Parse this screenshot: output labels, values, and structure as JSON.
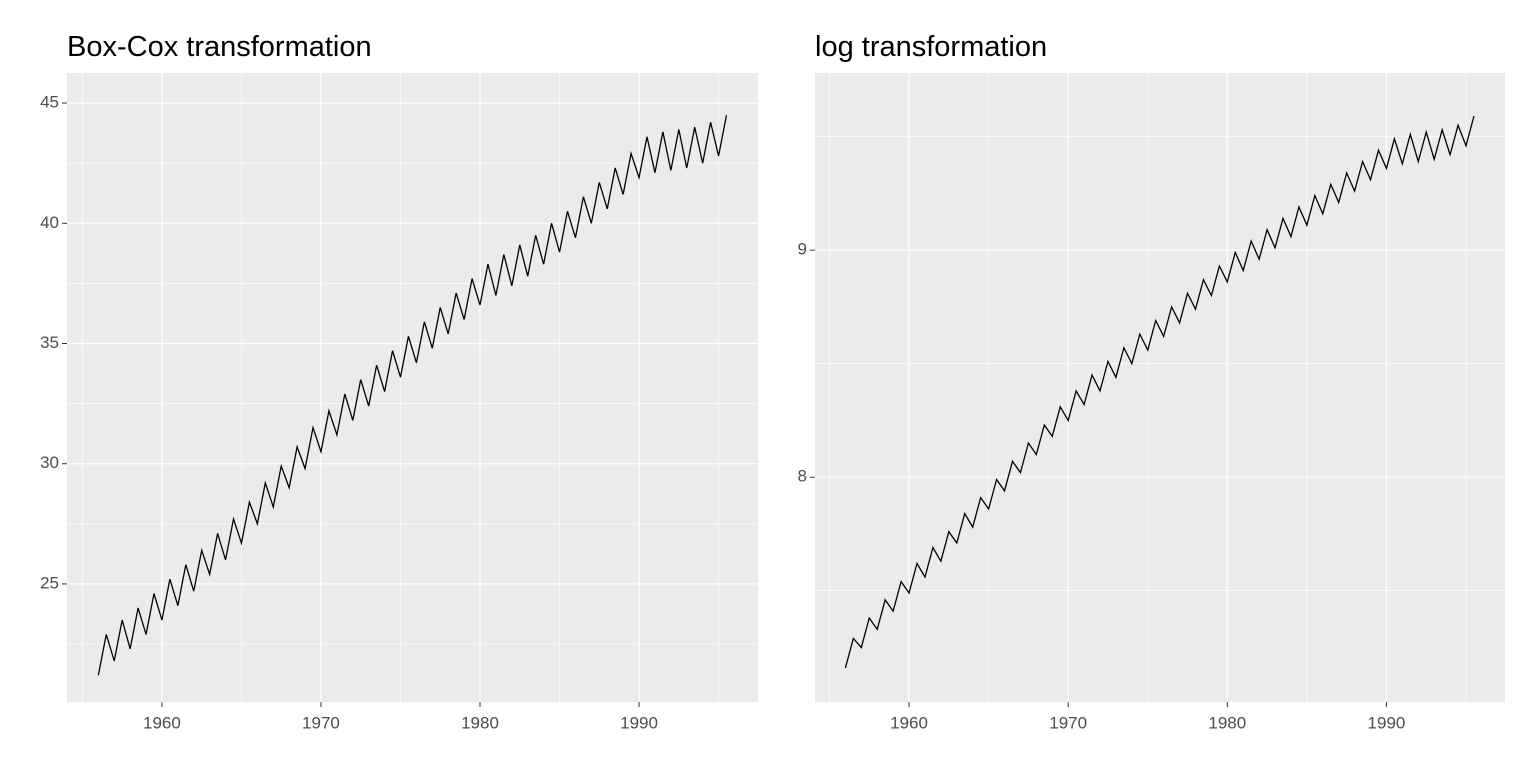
{
  "chart_data": [
    {
      "type": "line",
      "title": "Box-Cox transformation",
      "color": "#000000",
      "grid": true,
      "x": [
        1956.0,
        1956.5,
        1957.0,
        1957.5,
        1958.0,
        1958.5,
        1959.0,
        1959.5,
        1960.0,
        1960.5,
        1961.0,
        1961.5,
        1962.0,
        1962.5,
        1963.0,
        1963.5,
        1964.0,
        1964.5,
        1965.0,
        1965.5,
        1966.0,
        1966.5,
        1967.0,
        1967.5,
        1968.0,
        1968.5,
        1969.0,
        1969.5,
        1970.0,
        1970.5,
        1971.0,
        1971.5,
        1972.0,
        1972.5,
        1973.0,
        1973.5,
        1974.0,
        1974.5,
        1975.0,
        1975.5,
        1976.0,
        1976.5,
        1977.0,
        1977.5,
        1978.0,
        1978.5,
        1979.0,
        1979.5,
        1980.0,
        1980.5,
        1981.0,
        1981.5,
        1982.0,
        1982.5,
        1983.0,
        1983.5,
        1984.0,
        1984.5,
        1985.0,
        1985.5,
        1986.0,
        1986.5,
        1987.0,
        1987.5,
        1988.0,
        1988.5,
        1989.0,
        1989.5,
        1990.0,
        1990.5,
        1991.0,
        1991.5,
        1992.0,
        1992.5,
        1993.0,
        1993.5,
        1994.0,
        1994.5,
        1995.0,
        1995.5
      ],
      "values": [
        21.2,
        22.9,
        21.8,
        23.5,
        22.3,
        24.0,
        22.9,
        24.6,
        23.5,
        25.2,
        24.1,
        25.8,
        24.7,
        26.4,
        25.4,
        27.1,
        26.0,
        27.7,
        26.7,
        28.4,
        27.5,
        29.2,
        28.2,
        29.9,
        29.0,
        30.7,
        29.8,
        31.5,
        30.5,
        32.2,
        31.2,
        32.9,
        31.8,
        33.5,
        32.4,
        34.1,
        33.0,
        34.7,
        33.6,
        35.3,
        34.2,
        35.9,
        34.8,
        36.5,
        35.4,
        37.1,
        36.0,
        37.7,
        36.6,
        38.3,
        37.0,
        38.7,
        37.4,
        39.1,
        37.8,
        39.5,
        38.3,
        40.0,
        38.8,
        40.5,
        39.4,
        41.1,
        40.0,
        41.7,
        40.6,
        42.3,
        41.2,
        42.9,
        41.9,
        43.6,
        42.1,
        43.8,
        42.2,
        43.9,
        42.3,
        44.0,
        42.5,
        44.2,
        42.8,
        44.5
      ],
      "xlim": [
        1954.03,
        1997.48
      ],
      "xticks": [
        1960,
        1970,
        1980,
        1990
      ],
      "ylim": [
        20.09,
        46.25
      ],
      "yticks": [
        25,
        30,
        35,
        40,
        45
      ]
    },
    {
      "type": "line",
      "title": "log transformation",
      "color": "#000000",
      "grid": true,
      "x": [
        1956.0,
        1956.5,
        1957.0,
        1957.5,
        1958.0,
        1958.5,
        1959.0,
        1959.5,
        1960.0,
        1960.5,
        1961.0,
        1961.5,
        1962.0,
        1962.5,
        1963.0,
        1963.5,
        1964.0,
        1964.5,
        1965.0,
        1965.5,
        1966.0,
        1966.5,
        1967.0,
        1967.5,
        1968.0,
        1968.5,
        1969.0,
        1969.5,
        1970.0,
        1970.5,
        1971.0,
        1971.5,
        1972.0,
        1972.5,
        1973.0,
        1973.5,
        1974.0,
        1974.5,
        1975.0,
        1975.5,
        1976.0,
        1976.5,
        1977.0,
        1977.5,
        1978.0,
        1978.5,
        1979.0,
        1979.5,
        1980.0,
        1980.5,
        1981.0,
        1981.5,
        1982.0,
        1982.5,
        1983.0,
        1983.5,
        1984.0,
        1984.5,
        1985.0,
        1985.5,
        1986.0,
        1986.5,
        1987.0,
        1987.5,
        1988.0,
        1988.5,
        1989.0,
        1989.5,
        1990.0,
        1990.5,
        1991.0,
        1991.5,
        1992.0,
        1992.5,
        1993.0,
        1993.5,
        1994.0,
        1994.5,
        1995.0,
        1995.5
      ],
      "values": [
        7.16,
        7.29,
        7.25,
        7.38,
        7.33,
        7.46,
        7.41,
        7.54,
        7.49,
        7.62,
        7.56,
        7.69,
        7.63,
        7.76,
        7.71,
        7.84,
        7.78,
        7.91,
        7.86,
        7.99,
        7.94,
        8.07,
        8.02,
        8.15,
        8.1,
        8.23,
        8.18,
        8.31,
        8.25,
        8.38,
        8.32,
        8.45,
        8.38,
        8.51,
        8.44,
        8.57,
        8.5,
        8.63,
        8.56,
        8.69,
        8.62,
        8.75,
        8.68,
        8.81,
        8.74,
        8.87,
        8.8,
        8.93,
        8.86,
        8.99,
        8.91,
        9.04,
        8.96,
        9.09,
        9.01,
        9.14,
        9.06,
        9.19,
        9.11,
        9.24,
        9.16,
        9.29,
        9.21,
        9.34,
        9.26,
        9.39,
        9.31,
        9.44,
        9.36,
        9.49,
        9.38,
        9.51,
        9.39,
        9.52,
        9.4,
        9.53,
        9.42,
        9.55,
        9.46,
        9.59
      ],
      "xlim": [
        1954.09,
        1997.45
      ],
      "xticks": [
        1960,
        1970,
        1980,
        1990
      ],
      "ylim": [
        7.01,
        9.78
      ],
      "yticks": [
        8,
        9
      ]
    }
  ]
}
